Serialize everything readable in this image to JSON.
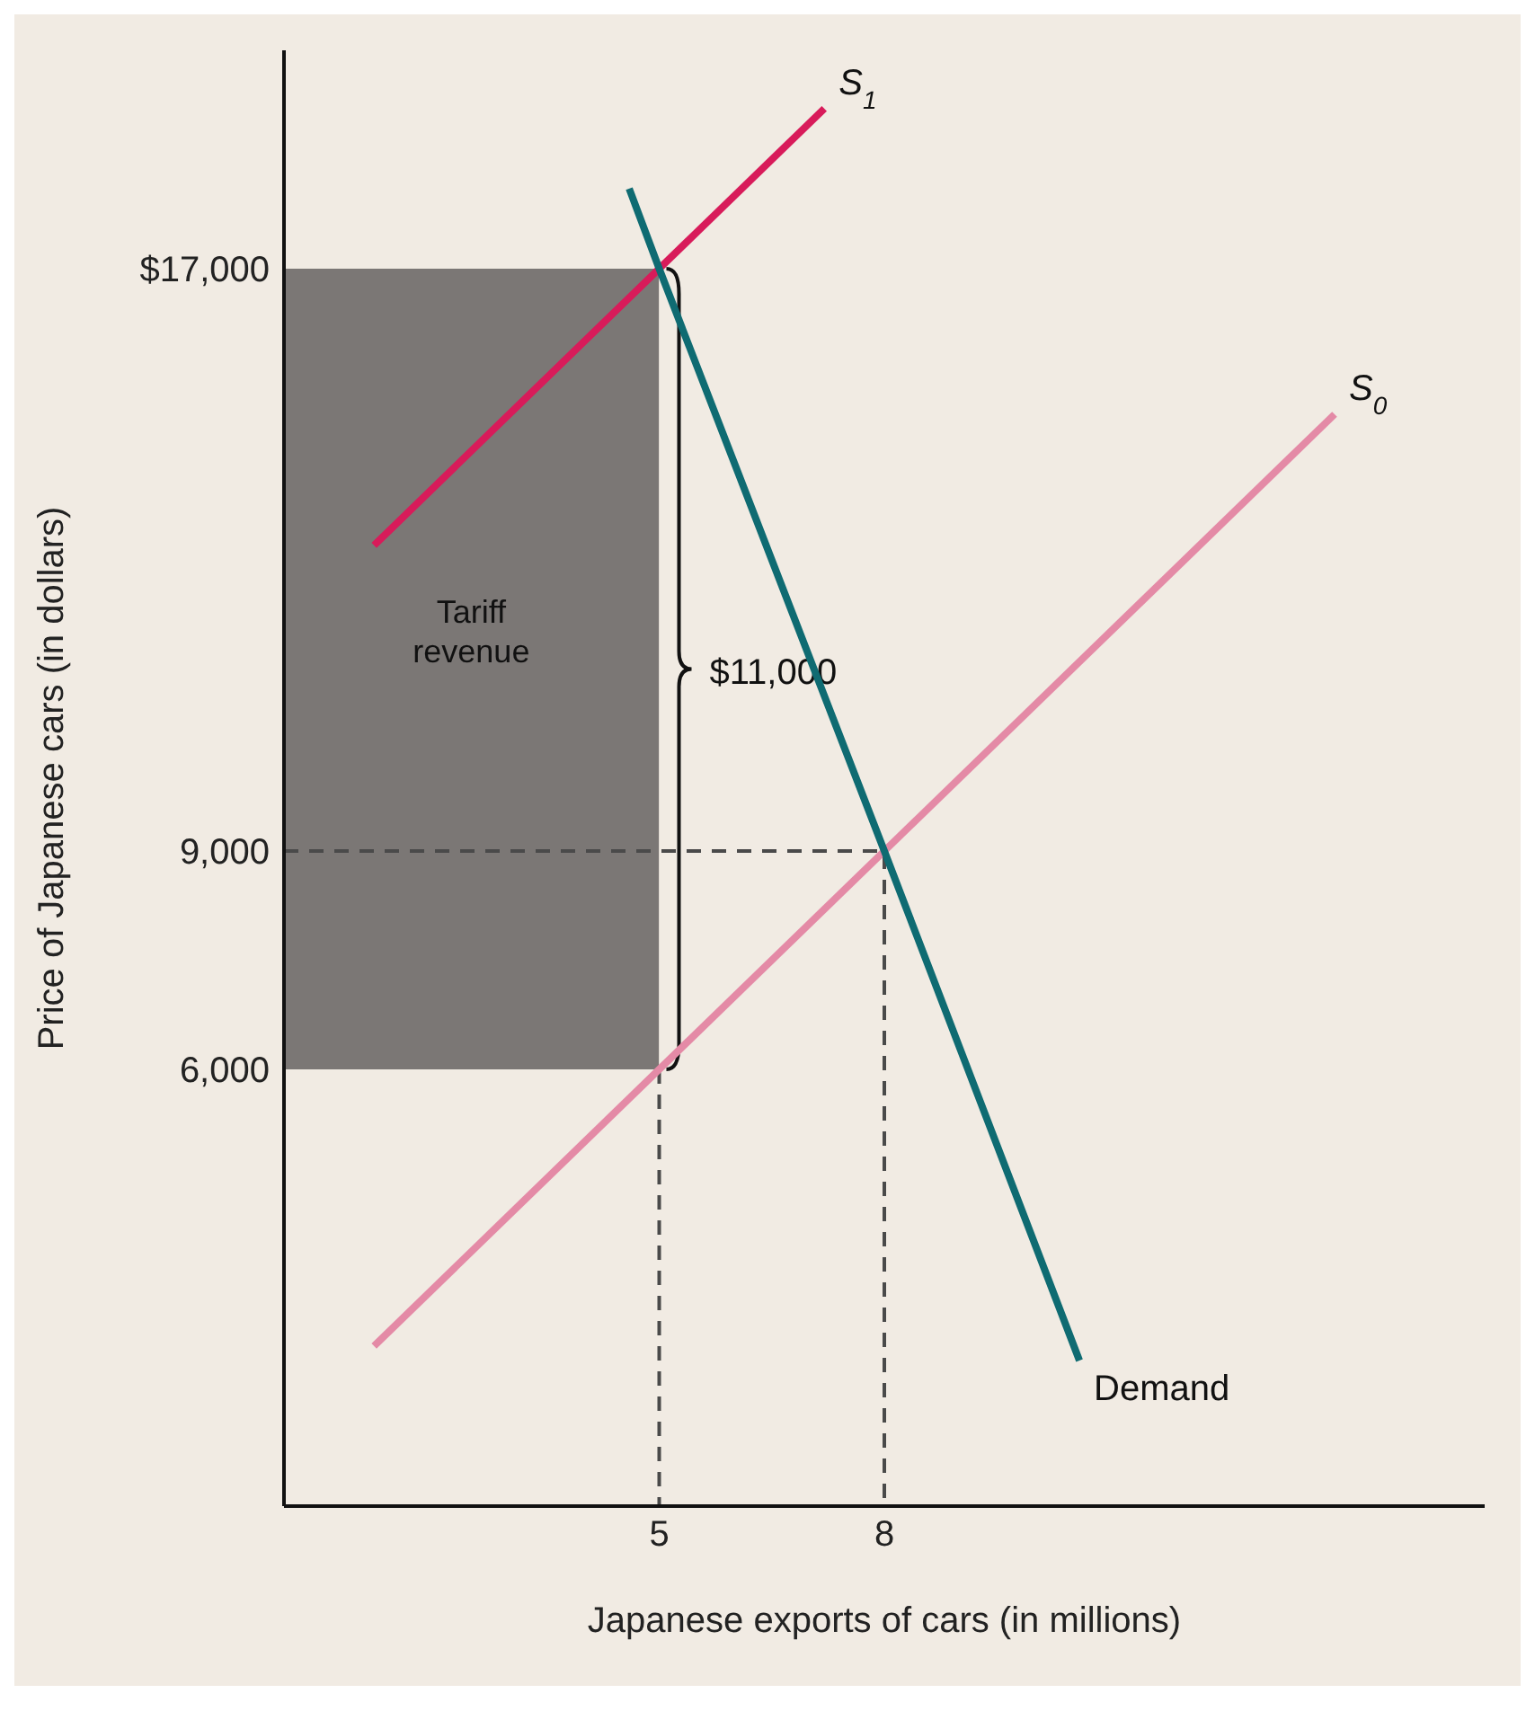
{
  "chart_data": {
    "type": "line",
    "xlabel": "Japanese exports of cars (in millions)",
    "ylabel": "Price of Japanese cars (in dollars)",
    "xlim": [
      0,
      16
    ],
    "ylim": [
      0,
      20000
    ],
    "xticks": [
      5,
      8
    ],
    "yticks": [
      {
        "value": 6000,
        "label": "6,000"
      },
      {
        "value": 9000,
        "label": "9,000"
      },
      {
        "value": 17000,
        "label": "$17,000"
      }
    ],
    "grid": false,
    "legend": false,
    "marker": "none",
    "series": [
      {
        "type": "bar",
        "x": [
          2.5
        ],
        "values": [
          11000
        ],
        "base": [
          6000
        ],
        "color": "#7b7775"
      },
      {
        "x": [
          0,
          8,
          8
        ],
        "values": [
          9000,
          9000,
          0
        ],
        "color": "#4a4a4a",
        "line_style": "dashed"
      },
      {
        "x": [
          5,
          5
        ],
        "values": [
          6000,
          0
        ],
        "color": "#4a4a4a",
        "line_style": "dashed"
      },
      {
        "name": "S$_{0}$",
        "x": [
          1.2,
          14
        ],
        "values": [
          2200,
          15000
        ],
        "color": "#e48aa6",
        "line_style": "solid"
      },
      {
        "name": "S$_{1}$",
        "x": [
          1.2,
          7.2
        ],
        "values": [
          13200,
          19200
        ],
        "color": "#d81b5a",
        "line_style": "solid"
      },
      {
        "name": "Demand",
        "x": [
          4.6,
          5,
          8,
          10.6
        ],
        "values": [
          18100,
          17000,
          9000,
          2000
        ],
        "color": "#0f6b72",
        "line_style": "solid"
      }
    ],
    "annotations": [
      "Tariff revenue",
      "$11,000"
    ]
  }
}
